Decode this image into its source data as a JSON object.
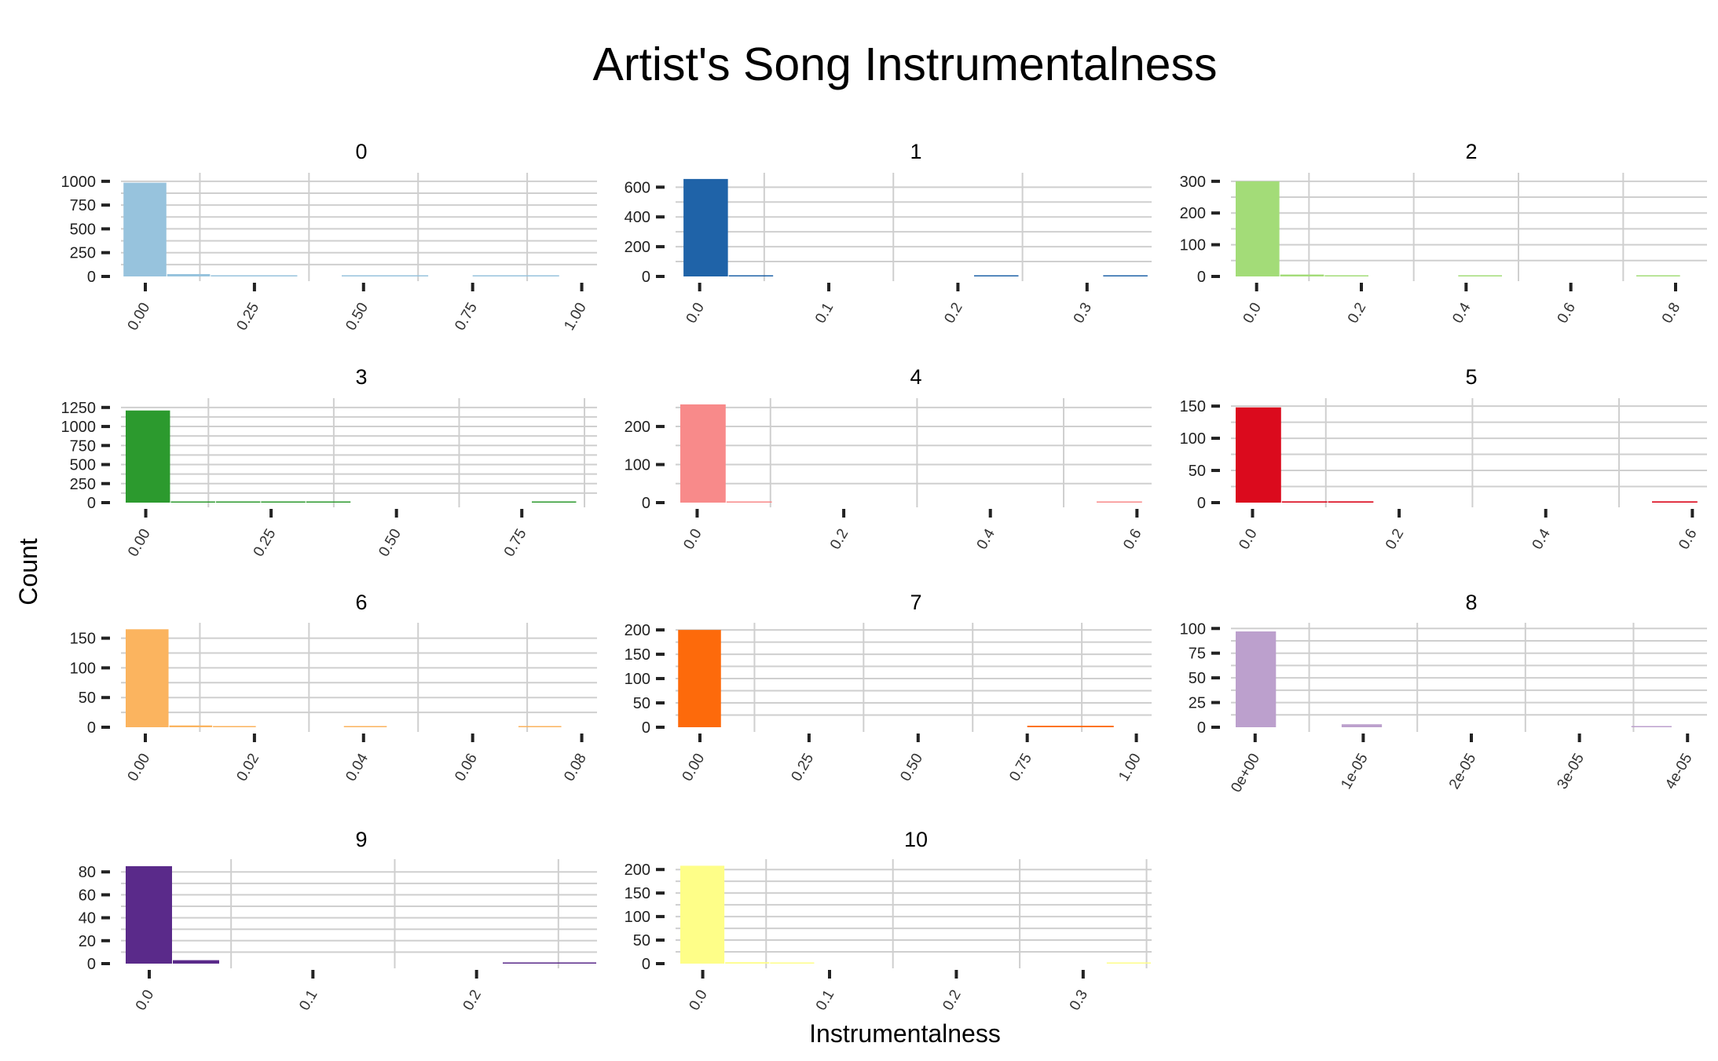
{
  "chart_data": {
    "type": "bar",
    "title": "Artist's Song Instrumentalness",
    "xlabel": "Instrumentalness",
    "ylabel": "Count",
    "grid": true,
    "panels": [
      {
        "label": "0",
        "color": "#97c3dd",
        "xticks": [
          "0.00",
          "0.25",
          "0.50",
          "0.75",
          "1.00"
        ],
        "xlim": [
          -0.045,
          1.035
        ],
        "yticks": [
          0,
          250,
          500,
          750,
          1000
        ],
        "ylim": [
          0,
          1040
        ],
        "bins": [
          {
            "x0": -0.05,
            "x1": 0.05,
            "y": 985
          },
          {
            "x0": 0.05,
            "x1": 0.15,
            "y": 25
          },
          {
            "x0": 0.15,
            "x1": 0.35,
            "y": 8
          },
          {
            "x0": 0.45,
            "x1": 0.65,
            "y": 6
          },
          {
            "x0": 0.75,
            "x1": 0.95,
            "y": 6
          }
        ]
      },
      {
        "label": "1",
        "color": "#1f63a8",
        "xticks": [
          "0.0",
          "0.1",
          "0.2",
          "0.3"
        ],
        "xlim": [
          -0.015,
          0.35
        ],
        "yticks": [
          0,
          200,
          400,
          600
        ],
        "ylim": [
          0,
          665
        ],
        "bins": [
          {
            "x0": -0.0125,
            "x1": 0.0225,
            "y": 655
          },
          {
            "x0": 0.0225,
            "x1": 0.0575,
            "y": 3
          },
          {
            "x0": 0.2125,
            "x1": 0.2475,
            "y": 2
          },
          {
            "x0": 0.3125,
            "x1": 0.3475,
            "y": 2
          }
        ]
      },
      {
        "label": "2",
        "color": "#a3dc78",
        "xticks": [
          "0.0",
          "0.2",
          "0.4",
          "0.6",
          "0.8"
        ],
        "xlim": [
          -0.04,
          0.86
        ],
        "yticks": [
          0,
          100,
          200,
          300
        ],
        "ylim": [
          0,
          312
        ],
        "bins": [
          {
            "x0": -0.04,
            "x1": 0.045,
            "y": 300
          },
          {
            "x0": 0.045,
            "x1": 0.13,
            "y": 6
          },
          {
            "x0": 0.13,
            "x1": 0.215,
            "y": 3
          },
          {
            "x0": 0.385,
            "x1": 0.47,
            "y": 2
          },
          {
            "x0": 0.725,
            "x1": 0.81,
            "y": 2
          }
        ]
      },
      {
        "label": "3",
        "color": "#2c9a2e",
        "xticks": [
          "0.00",
          "0.25",
          "0.50",
          "0.75"
        ],
        "xlim": [
          -0.04,
          0.9
        ],
        "yticks": [
          0,
          250,
          500,
          750,
          1000,
          1250
        ],
        "ylim": [
          0,
          1310
        ],
        "bins": [
          {
            "x0": -0.04,
            "x1": 0.05,
            "y": 1210
          },
          {
            "x0": 0.05,
            "x1": 0.14,
            "y": 12
          },
          {
            "x0": 0.14,
            "x1": 0.23,
            "y": 6
          },
          {
            "x0": 0.23,
            "x1": 0.32,
            "y": 4
          },
          {
            "x0": 0.32,
            "x1": 0.41,
            "y": 3
          },
          {
            "x0": 0.77,
            "x1": 0.86,
            "y": 3
          }
        ]
      },
      {
        "label": "4",
        "color": "#f88a8a",
        "xticks": [
          "0.0",
          "0.2",
          "0.4",
          "0.6"
        ],
        "xlim": [
          -0.023,
          0.62
        ],
        "yticks": [
          0,
          100,
          200
        ],
        "ylim": [
          0,
          262
        ],
        "bins": [
          {
            "x0": -0.023,
            "x1": 0.04,
            "y": 258
          },
          {
            "x0": 0.04,
            "x1": 0.103,
            "y": 2
          },
          {
            "x0": 0.545,
            "x1": 0.608,
            "y": 2
          }
        ]
      },
      {
        "label": "5",
        "color": "#db0a1d",
        "xticks": [
          "0.0",
          "0.2",
          "0.4",
          "0.6"
        ],
        "xlim": [
          -0.023,
          0.62
        ],
        "yticks": [
          0,
          50,
          100,
          150
        ],
        "ylim": [
          0,
          155
        ],
        "bins": [
          {
            "x0": -0.023,
            "x1": 0.04,
            "y": 148
          },
          {
            "x0": 0.04,
            "x1": 0.103,
            "y": 2
          },
          {
            "x0": 0.103,
            "x1": 0.166,
            "y": 2
          },
          {
            "x0": 0.545,
            "x1": 0.608,
            "y": 2
          }
        ]
      },
      {
        "label": "6",
        "color": "#fbb45f",
        "xticks": [
          "0.00",
          "0.02",
          "0.04",
          "0.06",
          "0.08"
        ],
        "xlim": [
          -0.0036,
          0.0828
        ],
        "yticks": [
          0,
          50,
          100,
          150
        ],
        "ylim": [
          0,
          168
        ],
        "bins": [
          {
            "x0": -0.0036,
            "x1": 0.0044,
            "y": 165
          },
          {
            "x0": 0.0044,
            "x1": 0.0124,
            "y": 3
          },
          {
            "x0": 0.0124,
            "x1": 0.0204,
            "y": 2
          },
          {
            "x0": 0.0364,
            "x1": 0.0444,
            "y": 2
          },
          {
            "x0": 0.0684,
            "x1": 0.0764,
            "y": 2
          }
        ]
      },
      {
        "label": "7",
        "color": "#fd6a0b",
        "xticks": [
          "0.00",
          "0.25",
          "0.50",
          "0.75",
          "1.00"
        ],
        "xlim": [
          -0.045,
          1.035
        ],
        "yticks": [
          0,
          50,
          100,
          150,
          200
        ],
        "ylim": [
          0,
          205
        ],
        "bins": [
          {
            "x0": -0.05,
            "x1": 0.05,
            "y": 200
          },
          {
            "x0": 0.75,
            "x1": 0.95,
            "y": 3
          }
        ]
      },
      {
        "label": "8",
        "color": "#bca0cd",
        "xticks": [
          "0e+00",
          "1e-05",
          "2e-05",
          "3e-05",
          "4e-05"
        ],
        "xlim": [
          -1.8e-06,
          4.18e-05
        ],
        "yticks": [
          0,
          25,
          50,
          75,
          100
        ],
        "ylim": [
          0,
          101
        ],
        "bins": [
          {
            "x0": -1.8e-06,
            "x1": 2e-06,
            "y": 97
          },
          {
            "x0": 8e-06,
            "x1": 1.18e-05,
            "y": 3
          },
          {
            "x0": 3.48e-05,
            "x1": 3.86e-05,
            "y": 1
          }
        ]
      },
      {
        "label": "9",
        "color": "#5a2a8a",
        "xticks": [
          "0.0",
          "0.1",
          "0.2"
        ],
        "xlim": [
          -0.0144,
          0.2736
        ],
        "yticks": [
          0,
          20,
          40,
          60,
          80
        ],
        "ylim": [
          0,
          87
        ],
        "bins": [
          {
            "x0": -0.0144,
            "x1": 0.0144,
            "y": 85
          },
          {
            "x0": 0.0144,
            "x1": 0.0432,
            "y": 3
          },
          {
            "x0": 0.216,
            "x1": 0.2736,
            "y": 1
          }
        ]
      },
      {
        "label": "10",
        "color": "#fefe88",
        "xticks": [
          "0.0",
          "0.1",
          "0.2",
          "0.3"
        ],
        "xlim": [
          -0.0177,
          0.354
        ],
        "yticks": [
          0,
          50,
          100,
          150,
          200
        ],
        "ylim": [
          0,
          212
        ],
        "bins": [
          {
            "x0": -0.0177,
            "x1": 0.0177,
            "y": 208
          },
          {
            "x0": 0.0177,
            "x1": 0.0531,
            "y": 3
          },
          {
            "x0": 0.0531,
            "x1": 0.0885,
            "y": 2
          },
          {
            "x0": 0.3186,
            "x1": 0.354,
            "y": 2
          }
        ]
      }
    ]
  }
}
